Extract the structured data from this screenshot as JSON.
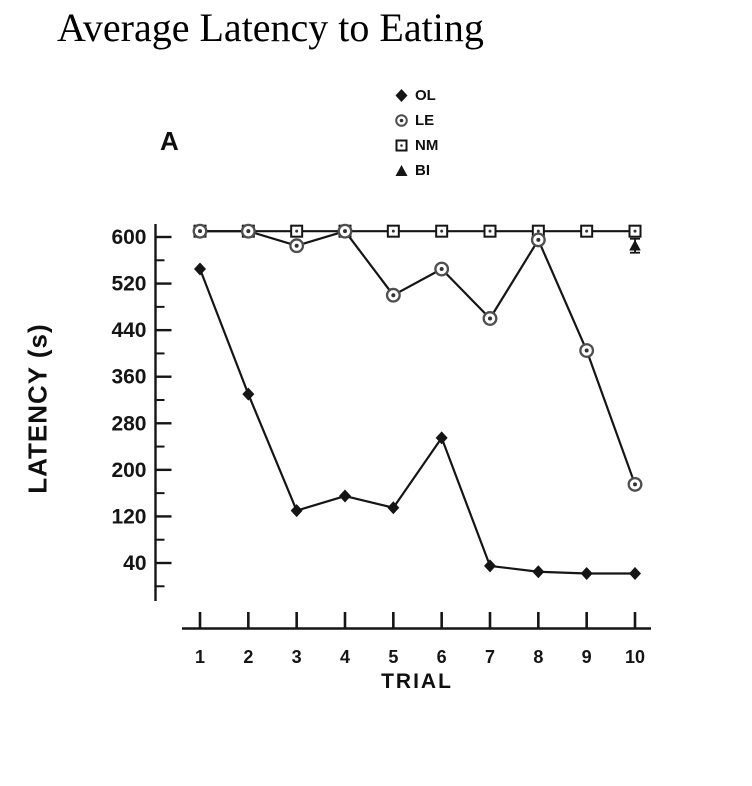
{
  "title": "Average Latency to Eating",
  "panel_label": "A",
  "colors": {
    "ink": "#151515",
    "circle_gray": "#4f4f4f",
    "background": "#ffffff"
  },
  "chart_data": {
    "type": "line",
    "title": "Average Latency to Eating",
    "xlabel": "TRIAL",
    "ylabel": "LATENCY (s)",
    "x": [
      1,
      2,
      3,
      4,
      5,
      6,
      7,
      8,
      9,
      10
    ],
    "y_ticks": [
      600,
      520,
      440,
      360,
      280,
      200,
      120,
      40
    ],
    "y_minor_step": 40,
    "ylim": [
      0,
      620
    ],
    "ceiling_value": 610,
    "grid": false,
    "legend_position": "top-center",
    "legend": [
      {
        "label": "OL",
        "marker": "diamond-filled"
      },
      {
        "label": "LE",
        "marker": "circle-open-dot"
      },
      {
        "label": "NM",
        "marker": "square-open-dot"
      },
      {
        "label": "BI",
        "marker": "triangle-filled"
      }
    ],
    "series": [
      {
        "name": "OL",
        "marker": "diamond-filled",
        "line": true,
        "values": [
          545,
          330,
          130,
          155,
          135,
          255,
          35,
          25,
          22,
          22
        ]
      },
      {
        "name": "LE",
        "marker": "circle-open-dot",
        "line": true,
        "values": [
          610,
          610,
          585,
          610,
          500,
          545,
          460,
          595,
          405,
          175
        ]
      },
      {
        "name": "NM",
        "marker": "square-open-dot",
        "line": true,
        "values": [
          610,
          610,
          610,
          610,
          610,
          610,
          610,
          610,
          610,
          610
        ]
      },
      {
        "name": "BI",
        "marker": "triangle-filled",
        "line": false,
        "values": [
          610,
          610,
          610,
          610,
          610,
          610,
          610,
          610,
          610,
          585
        ]
      }
    ],
    "error_bars": [
      {
        "series": "BI",
        "x": 10,
        "value": 585,
        "plus_minus": 12
      }
    ]
  }
}
